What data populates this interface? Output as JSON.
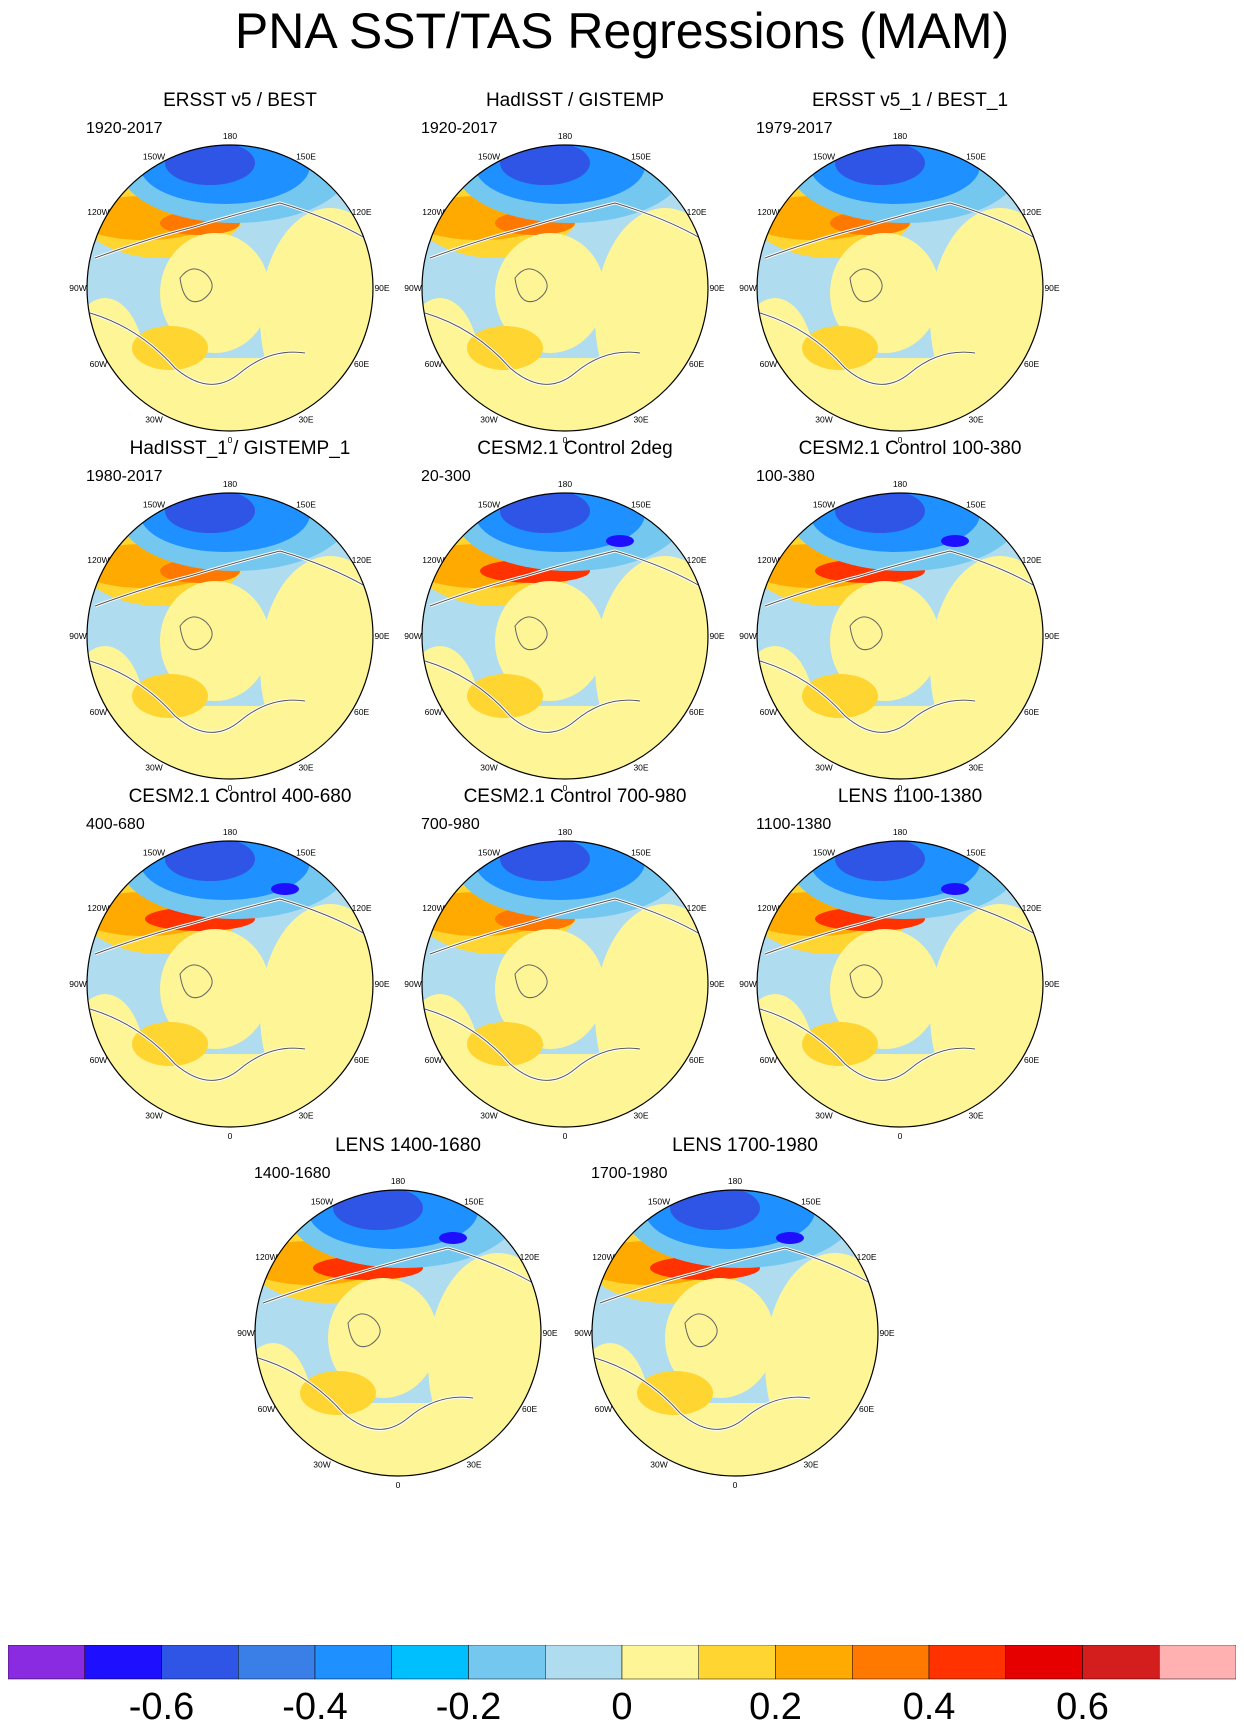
{
  "title": "PNA SST/TAS Regressions (MAM)",
  "chart_data": {
    "type": "polar-map-panels",
    "projection": "North Polar Stereographic",
    "variable": "SST/TAS regression on PNA index",
    "season": "MAM",
    "longitude_labels": [
      "180",
      "150E",
      "120E",
      "90E",
      "60E",
      "30E",
      "0",
      "30W",
      "60W",
      "90W",
      "120W",
      "150W"
    ],
    "panels": [
      {
        "title": "ERSST v5 / BEST",
        "period": "1920-2017",
        "pos_center_max": 0.4,
        "neg_center_min": -0.5
      },
      {
        "title": "HadISST / GISTEMP",
        "period": "1920-2017",
        "pos_center_max": 0.4,
        "neg_center_min": -0.5
      },
      {
        "title": "ERSST v5_1 / BEST_1",
        "period": "1979-2017",
        "pos_center_max": 0.4,
        "neg_center_min": -0.6
      },
      {
        "title": "HadISST_1 / GISTEMP_1",
        "period": "1980-2017",
        "pos_center_max": 0.4,
        "neg_center_min": -0.5
      },
      {
        "title": "CESM2.1 Control 2deg",
        "period": "20-300",
        "pos_center_max": 0.5,
        "neg_center_min": -0.7
      },
      {
        "title": "CESM2.1 Control 100-380",
        "period": "100-380",
        "pos_center_max": 0.5,
        "neg_center_min": -0.7
      },
      {
        "title": "CESM2.1 Control 400-680",
        "period": "400-680",
        "pos_center_max": 0.5,
        "neg_center_min": -0.7
      },
      {
        "title": "CESM2.1 Control 700-980",
        "period": "700-980",
        "pos_center_max": 0.5,
        "neg_center_min": -0.6
      },
      {
        "title": "LENS 1100-1380",
        "period": "1100-1380",
        "pos_center_max": 0.5,
        "neg_center_min": -0.7
      },
      {
        "title": "LENS 1400-1680",
        "period": "1400-1680",
        "pos_center_max": 0.5,
        "neg_center_min": -0.7
      },
      {
        "title": "LENS 1700-1980",
        "period": "1700-1980",
        "pos_center_max": 0.5,
        "neg_center_min": -0.7
      }
    ],
    "colorbar": {
      "levels": [
        -0.7,
        -0.6,
        -0.5,
        -0.4,
        -0.3,
        -0.2,
        -0.1,
        0,
        0.1,
        0.2,
        0.3,
        0.4,
        0.5,
        0.6,
        0.7
      ],
      "tick_labels": [
        "-0.6",
        "-0.4",
        "-0.2",
        "0",
        "0.2",
        "0.4",
        "0.6"
      ],
      "colors": [
        "#8a2be2",
        "#1e0fff",
        "#2f55e6",
        "#3a7fe8",
        "#1e90ff",
        "#00bfff",
        "#74c8f0",
        "#b0dcf0",
        "#fef596",
        "#ffd532",
        "#ffaa00",
        "#ff7800",
        "#ff3200",
        "#e60000",
        "#d41e1e",
        "#ffb0b0"
      ]
    }
  }
}
